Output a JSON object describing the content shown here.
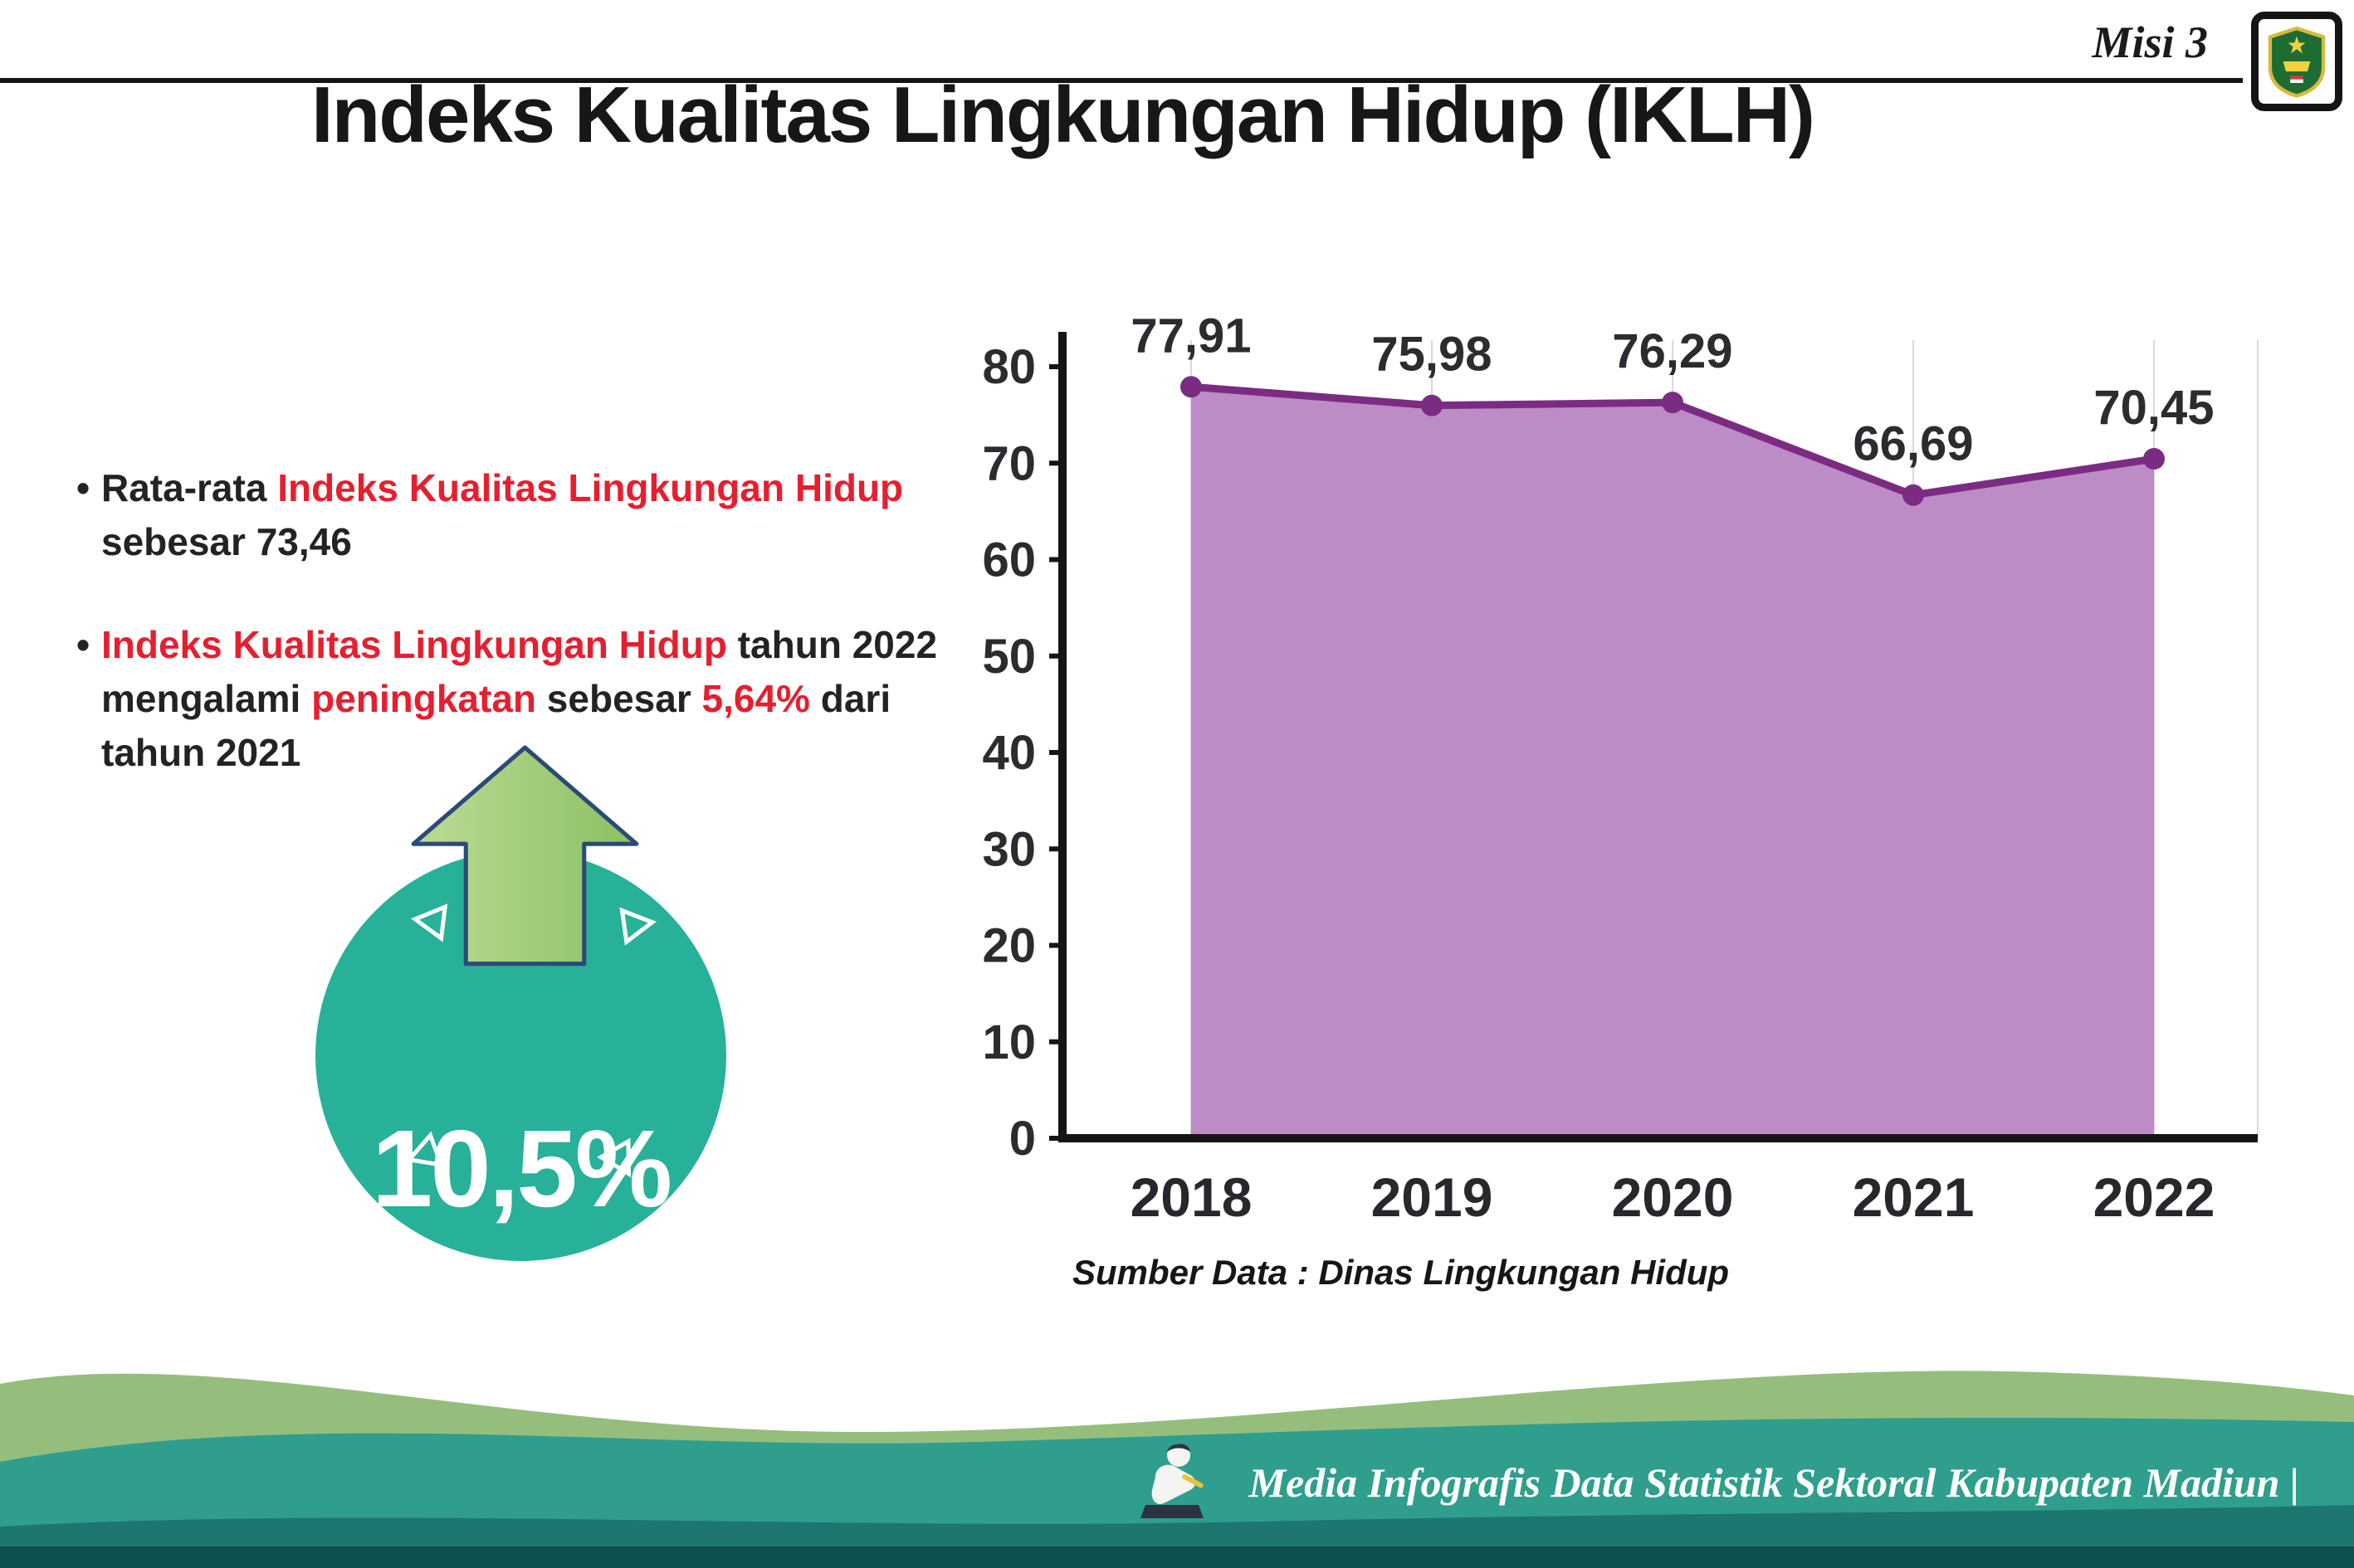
{
  "header": {
    "misi_label": "Misi 3",
    "logo_name": "Kabupaten Madiun"
  },
  "title": "Indeks Kualitas Lingkungan Hidup (IKLH)",
  "bullets": {
    "b1": {
      "s1": "Rata-rata ",
      "s2": "Indeks Kualitas Lingkungan Hidup",
      "s3": " sebesar 73,46"
    },
    "b2": {
      "s1": "Indeks Kualitas Lingkungan Hidup",
      "s2": " tahun 2022 mengalami ",
      "s3": "peningkatan",
      "s4": " sebesar ",
      "s5": "5,64%",
      "s6": " dari tahun 2021"
    }
  },
  "badge": {
    "value": "10,5%"
  },
  "chart_data": {
    "type": "area",
    "categories": [
      "2018",
      "2019",
      "2020",
      "2021",
      "2022"
    ],
    "values": [
      77.91,
      75.98,
      76.29,
      66.69,
      70.45
    ],
    "point_labels": [
      "77,91",
      "75,98",
      "76,29",
      "66,69",
      "70,45"
    ],
    "ylim": [
      0,
      80
    ],
    "yticks": [
      0,
      10,
      20,
      30,
      40,
      50,
      60,
      70,
      80
    ],
    "grid": "vertical-light",
    "legend": "none",
    "fill_color": "#bd8cc6",
    "line_color": "#7b2c82",
    "source_note": "Sumber Data : Dinas Lingkungan Hidup"
  },
  "footer": {
    "credit": "Media Infografis Data Statistik Sektoral Kabupaten Madiun |"
  },
  "colors": {
    "accent_red": "#e51f2f",
    "badge_teal": "#28b199",
    "arrow_green": "#9cc66e",
    "wave_green": "#95be7c",
    "wave_teal": "#2f9e8d",
    "wave_dark_teal": "#1e7671",
    "bottom_bar": "#0e5150"
  }
}
